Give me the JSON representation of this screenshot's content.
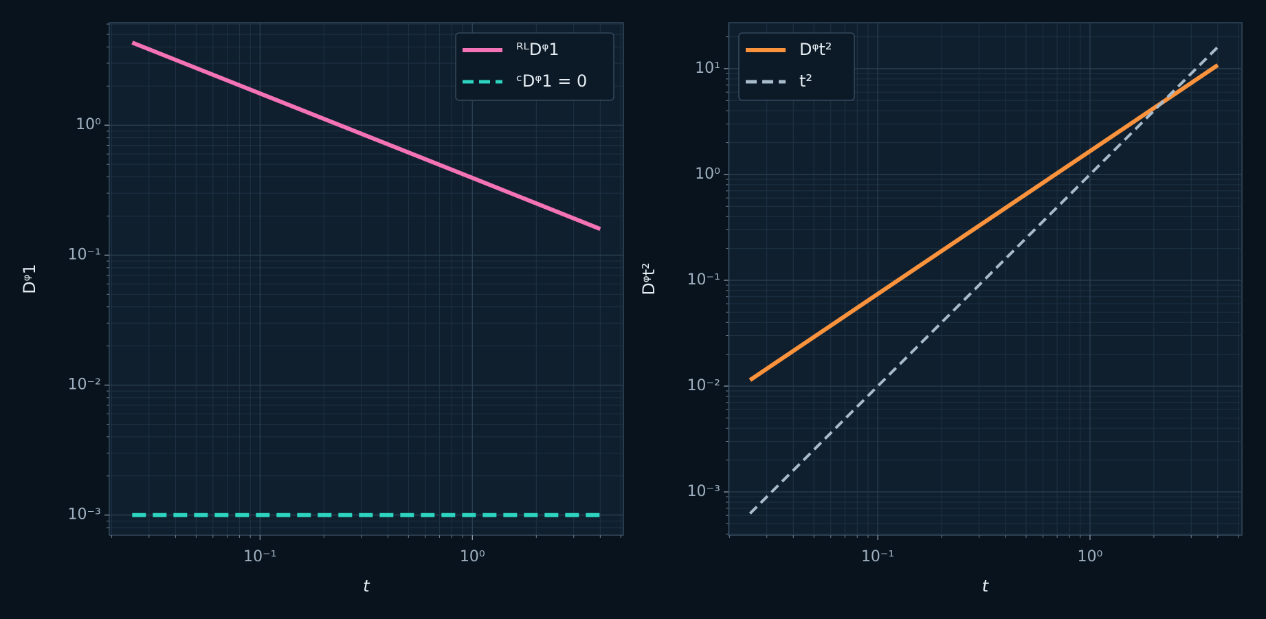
{
  "chart_data": [
    {
      "type": "line",
      "xlabel": "t",
      "ylabel": "Dᵠ1",
      "xscale": "log",
      "yscale": "log",
      "grid": true,
      "legend": "upper right",
      "x": [
        0.025,
        0.1,
        1,
        4
      ],
      "series": [
        {
          "name": "ᴿᴸDᵠ1",
          "color": "#f472b6",
          "linestyle": "solid",
          "values": [
            4.32,
            1.754,
            0.393,
            0.159
          ]
        },
        {
          "name": "ᶜDᵠ1 = 0",
          "color": "#2dd4bf",
          "linestyle": "dashed",
          "values": [
            0.001,
            0.001,
            0.001,
            0.001
          ]
        }
      ],
      "xlim": [
        0.0195,
        5.14
      ],
      "ylim": [
        0.0007,
        6.15
      ],
      "xticks": [
        {
          "value": 0.1,
          "label": "10⁻¹"
        },
        {
          "value": 1,
          "label": "10⁰"
        }
      ],
      "yticks": [
        {
          "value": 0.001,
          "label": "10⁻³"
        },
        {
          "value": 0.01,
          "label": "10⁻²"
        },
        {
          "value": 0.1,
          "label": "10⁻¹"
        },
        {
          "value": 1,
          "label": "10⁰"
        }
      ]
    },
    {
      "type": "line",
      "xlabel": "t",
      "ylabel": "Dᵠt²",
      "xscale": "log",
      "yscale": "log",
      "grid": true,
      "legend": "upper left",
      "x": [
        0.025,
        0.1,
        1,
        4
      ],
      "series": [
        {
          "name": "Dᵠt²",
          "color": "#fb923c",
          "linestyle": "solid",
          "values": [
            0.0114,
            0.0743,
            1.662,
            10.8
          ]
        },
        {
          "name": "t²",
          "color": "#a8bccb",
          "linestyle": "dashed",
          "values": [
            0.000625,
            0.01,
            1,
            16
          ]
        }
      ],
      "xlim": [
        0.0198,
        5.2
      ],
      "ylim": [
        0.00039,
        27.2
      ],
      "xticks": [
        {
          "value": 0.1,
          "label": "10⁻¹"
        },
        {
          "value": 1,
          "label": "10⁰"
        }
      ],
      "yticks": [
        {
          "value": 0.001,
          "label": "10⁻³"
        },
        {
          "value": 0.01,
          "label": "10⁻²"
        },
        {
          "value": 0.1,
          "label": "10⁻¹"
        },
        {
          "value": 1,
          "label": "10⁰"
        },
        {
          "value": 10,
          "label": "10¹"
        }
      ]
    }
  ]
}
